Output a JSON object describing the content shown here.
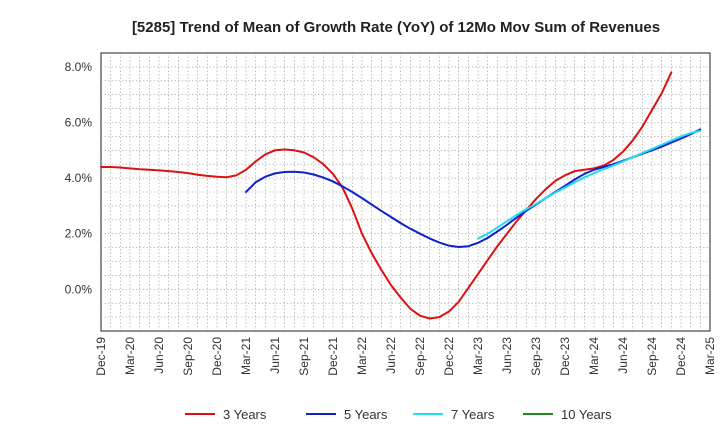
{
  "chart_data": {
    "type": "line",
    "title": "[5285]  Trend of Mean of Growth Rate (YoY) of 12Mo Mov Sum of Revenues",
    "xlabel": "",
    "ylabel": "",
    "x_tick_labels": [
      "Dec-19",
      "Mar-20",
      "Jun-20",
      "Sep-20",
      "Dec-20",
      "Mar-21",
      "Jun-21",
      "Sep-21",
      "Dec-21",
      "Mar-22",
      "Jun-22",
      "Sep-22",
      "Dec-22",
      "Mar-23",
      "Jun-23",
      "Sep-23",
      "Dec-23",
      "Mar-24",
      "Jun-24",
      "Sep-24",
      "Dec-24",
      "Mar-25"
    ],
    "y_ticks": [
      0,
      2,
      4,
      6,
      8
    ],
    "y_tick_labels": [
      "0.0%",
      "2.0%",
      "4.0%",
      "6.0%",
      "8.0%"
    ],
    "ylim": [
      -1.5,
      8.5
    ],
    "x_range_months": [
      0,
      63
    ],
    "grid": true,
    "legend_position": "bottom",
    "series": [
      {
        "name": "3 Years",
        "color": "#dd1111",
        "start_month": 0,
        "values": [
          4.4,
          4.4,
          4.38,
          4.35,
          4.32,
          4.3,
          4.28,
          4.25,
          4.22,
          4.18,
          4.12,
          4.08,
          4.05,
          4.03,
          4.1,
          4.3,
          4.6,
          4.85,
          5.0,
          5.03,
          5.0,
          4.92,
          4.75,
          4.5,
          4.15,
          3.65,
          2.9,
          2.0,
          1.3,
          0.7,
          0.15,
          -0.3,
          -0.7,
          -0.95,
          -1.05,
          -1.0,
          -0.8,
          -0.45,
          0.05,
          0.55,
          1.05,
          1.55,
          2.0,
          2.45,
          2.85,
          3.25,
          3.6,
          3.9,
          4.1,
          4.25,
          4.3,
          4.35,
          4.45,
          4.65,
          4.95,
          5.35,
          5.85,
          6.45,
          7.05,
          7.8
        ]
      },
      {
        "name": "5 Years",
        "color": "#1122cc",
        "start_month": 15,
        "values": [
          3.5,
          3.85,
          4.05,
          4.17,
          4.22,
          4.23,
          4.2,
          4.13,
          4.02,
          3.88,
          3.7,
          3.5,
          3.28,
          3.05,
          2.82,
          2.6,
          2.38,
          2.18,
          2.0,
          1.83,
          1.68,
          1.57,
          1.52,
          1.55,
          1.67,
          1.85,
          2.08,
          2.32,
          2.58,
          2.83,
          3.05,
          3.28,
          3.5,
          3.72,
          3.95,
          4.15,
          4.3,
          4.4,
          4.5,
          4.62,
          4.75,
          4.88,
          5.0,
          5.13,
          5.28,
          5.42,
          5.58,
          5.75
        ]
      },
      {
        "name": "7 Years",
        "color": "#22ddee",
        "start_month": 39,
        "values": [
          1.82,
          2.0,
          2.22,
          2.45,
          2.68,
          2.88,
          3.07,
          3.28,
          3.48,
          3.66,
          3.85,
          4.02,
          4.18,
          4.32,
          4.45,
          4.6,
          4.75,
          4.9,
          5.05,
          5.2,
          5.35,
          5.5,
          5.62,
          5.7
        ]
      },
      {
        "name": "10 Years",
        "color": "#228822",
        "start_month": 0,
        "values": []
      }
    ]
  }
}
